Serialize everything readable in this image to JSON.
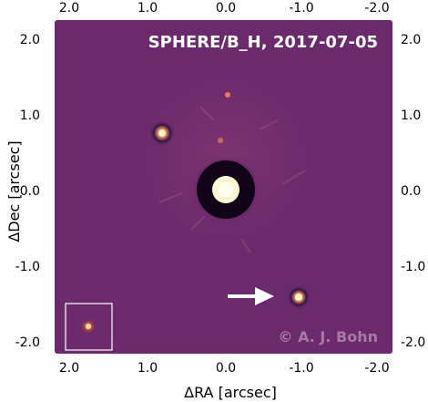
{
  "chart_data": {
    "type": "image",
    "title": "SPHERE/B_H, 2017-07-05",
    "credit": "© A. J. Bohn",
    "xlabel": "ΔRA [arcsec]",
    "ylabel": "ΔDec [arcsec]",
    "xlim": [
      2.2,
      -2.2
    ],
    "ylim": [
      -2.2,
      2.2
    ],
    "x_ticks": [
      "2.0",
      "1.0",
      "0.0",
      "-1.0",
      "-2.0"
    ],
    "x_tick_values": [
      2.0,
      1.0,
      0.0,
      -1.0,
      -2.0
    ],
    "y_ticks": [
      "2.0",
      "1.0",
      "0.0",
      "-1.0",
      "-2.0"
    ],
    "y_tick_values": [
      2.0,
      1.0,
      0.0,
      -1.0,
      -2.0
    ],
    "background_color": "#6b2a6b",
    "annotations": {
      "arrow": "white arrow pointing at the companion at lower right",
      "inset": "zoomed inset of a point source, lower left"
    }
  }
}
